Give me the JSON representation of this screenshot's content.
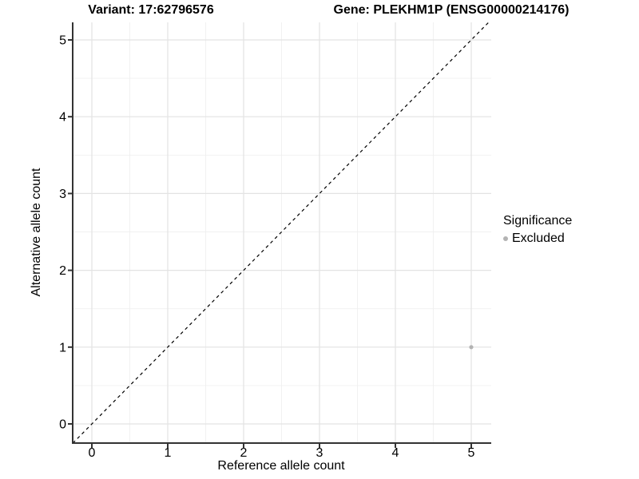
{
  "titles": {
    "left": "Variant: 17:62796576",
    "right": "Gene: PLEKHM1P (ENSG00000214176)"
  },
  "axes": {
    "x": {
      "label": "Reference allele count"
    },
    "y": {
      "label": "Alternative allele count"
    }
  },
  "legend": {
    "title": "Significance",
    "items": [
      {
        "label": "Excluded",
        "color": "#b3b3b3"
      }
    ]
  },
  "chart_data": {
    "type": "scatter",
    "title_left": "Variant: 17:62796576",
    "title_right": "Gene: PLEKHM1P (ENSG00000214176)",
    "xlabel": "Reference allele count",
    "ylabel": "Alternative allele count",
    "xlim": [
      -0.25,
      5.25
    ],
    "ylim": [
      -0.25,
      5.25
    ],
    "x_ticks": [
      0,
      1,
      2,
      3,
      4,
      5
    ],
    "y_ticks": [
      0,
      1,
      2,
      3,
      4,
      5
    ],
    "x_minor_ticks": [
      0.5,
      1.5,
      2.5,
      3.5,
      4.5
    ],
    "y_minor_ticks": [
      0.5,
      1.5,
      2.5,
      3.5,
      4.5
    ],
    "grid": {
      "major": true,
      "minor": true,
      "major_color": "#e3e3e3",
      "minor_color": "#f0f0f0"
    },
    "axis_line_color": "#333333",
    "reference_line": {
      "type": "identity",
      "style": "dashed",
      "color": "#000000",
      "x1": -0.25,
      "y1": -0.25,
      "x2": 5.25,
      "y2": 5.25
    },
    "series": [
      {
        "name": "Excluded",
        "color": "#b3b3b3",
        "points": [
          {
            "x": 5,
            "y": 1
          }
        ]
      }
    ],
    "legend_position": "right"
  }
}
